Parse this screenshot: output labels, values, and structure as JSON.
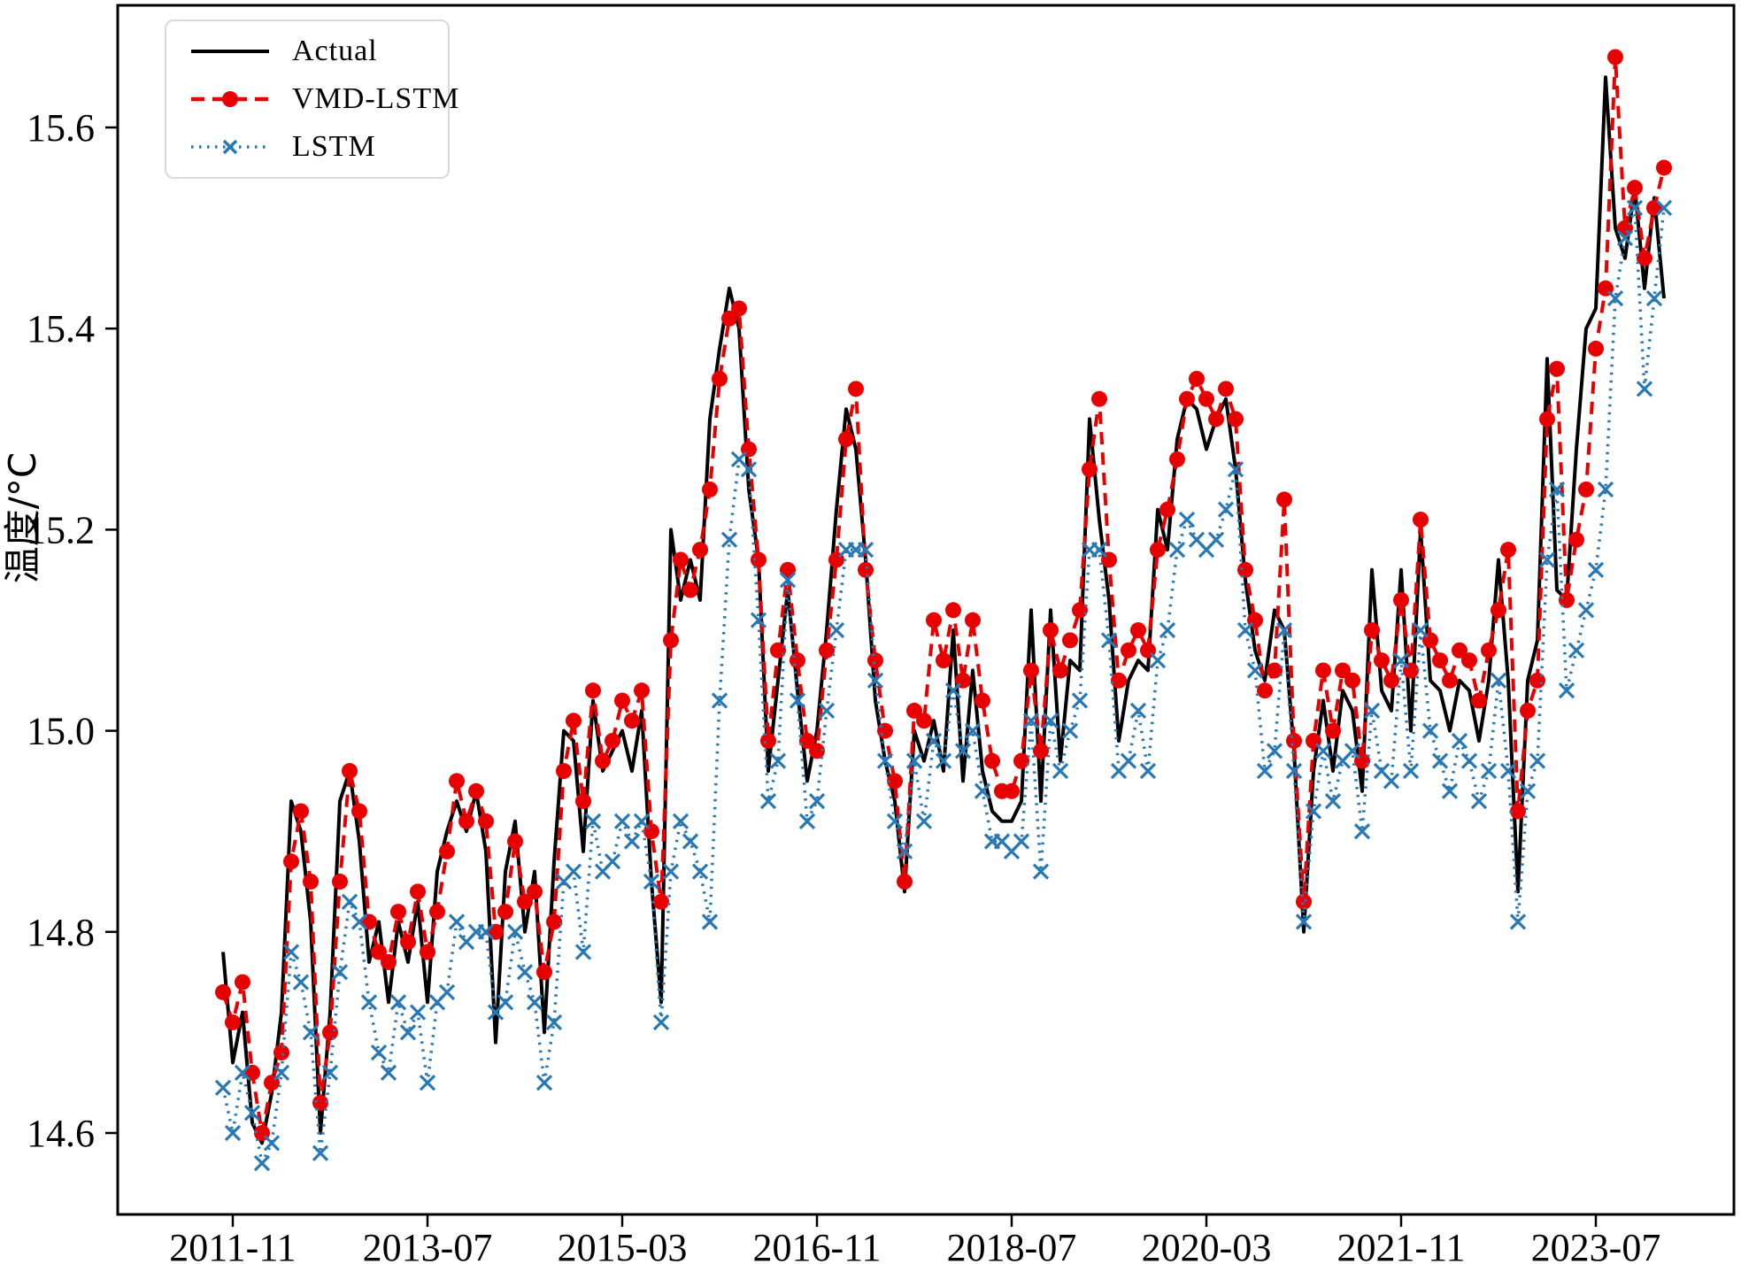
{
  "figure": {
    "background": "#ffffff",
    "frame_color": "#000000"
  },
  "legend": {
    "position": "upper-left",
    "items": [
      {
        "label": "Actual",
        "color": "#000000",
        "line_style": "solid",
        "marker": "none"
      },
      {
        "label": "VMD-LSTM",
        "color": "#e80000",
        "line_style": "dashed",
        "marker": "circle"
      },
      {
        "label": "LSTM",
        "color": "#2878b5",
        "line_style": "dotted",
        "marker": "x"
      }
    ]
  },
  "axes": {
    "y_label": "温度/°C",
    "x_label": "",
    "y_ticks": [
      14.6,
      14.8,
      15.0,
      15.2,
      15.4,
      15.6
    ],
    "x_tick_indices": [
      1,
      21,
      41,
      61,
      81,
      101,
      121,
      141
    ],
    "x_tick_labels": [
      "2011-11",
      "2013-07",
      "2015-03",
      "2016-11",
      "2018-07",
      "2020-03",
      "2021-11",
      "2023-07"
    ],
    "ylim": [
      14.5,
      15.72
    ],
    "grid": false
  },
  "chart_data": {
    "type": "line",
    "title": "",
    "xlabel": "",
    "ylabel": "温度/°C",
    "ylim": [
      14.5,
      15.72
    ],
    "grid": false,
    "legend_position": "upper-left",
    "x": [
      "2011-10",
      "2011-11",
      "2011-12",
      "2012-01",
      "2012-02",
      "2012-03",
      "2012-04",
      "2012-05",
      "2012-06",
      "2012-07",
      "2012-08",
      "2012-09",
      "2012-10",
      "2012-11",
      "2012-12",
      "2013-01",
      "2013-02",
      "2013-03",
      "2013-04",
      "2013-05",
      "2013-06",
      "2013-07",
      "2013-08",
      "2013-09",
      "2013-10",
      "2013-11",
      "2013-12",
      "2014-01",
      "2014-02",
      "2014-03",
      "2014-04",
      "2014-05",
      "2014-06",
      "2014-07",
      "2014-08",
      "2014-09",
      "2014-10",
      "2014-11",
      "2014-12",
      "2015-01",
      "2015-02",
      "2015-03",
      "2015-04",
      "2015-05",
      "2015-06",
      "2015-07",
      "2015-08",
      "2015-09",
      "2015-10",
      "2015-11",
      "2015-12",
      "2016-01",
      "2016-02",
      "2016-03",
      "2016-04",
      "2016-05",
      "2016-06",
      "2016-07",
      "2016-08",
      "2016-09",
      "2016-10",
      "2016-11",
      "2016-12",
      "2017-01",
      "2017-02",
      "2017-03",
      "2017-04",
      "2017-05",
      "2017-06",
      "2017-07",
      "2017-08",
      "2017-09",
      "2017-10",
      "2017-11",
      "2017-12",
      "2018-01",
      "2018-02",
      "2018-03",
      "2018-04",
      "2018-05",
      "2018-06",
      "2018-07",
      "2018-08",
      "2018-09",
      "2018-10",
      "2018-11",
      "2018-12",
      "2019-01",
      "2019-02",
      "2019-03",
      "2019-04",
      "2019-05",
      "2019-06",
      "2019-07",
      "2019-08",
      "2019-09",
      "2019-10",
      "2019-11",
      "2019-12",
      "2020-01",
      "2020-02",
      "2020-03",
      "2020-04",
      "2020-05",
      "2020-06",
      "2020-07",
      "2020-08",
      "2020-09",
      "2020-10",
      "2020-11",
      "2020-12",
      "2021-01",
      "2021-02",
      "2021-03",
      "2021-04",
      "2021-05",
      "2021-06",
      "2021-07",
      "2021-08",
      "2021-09",
      "2021-10",
      "2021-11",
      "2021-12",
      "2022-01",
      "2022-02",
      "2022-03",
      "2022-04",
      "2022-05",
      "2022-06",
      "2022-07",
      "2022-08",
      "2022-09",
      "2022-10",
      "2022-11",
      "2022-12",
      "2023-01",
      "2023-02",
      "2023-03",
      "2023-04",
      "2023-05",
      "2023-06",
      "2023-07",
      "2023-08",
      "2023-09",
      "2023-10",
      "2023-11",
      "2023-12",
      "2024-01",
      "2024-02"
    ],
    "series": [
      {
        "name": "Actual",
        "color": "#000000",
        "line": "solid",
        "marker": "none",
        "values": [
          14.78,
          14.67,
          14.72,
          14.61,
          14.59,
          14.64,
          14.72,
          14.93,
          14.9,
          14.81,
          14.6,
          14.72,
          14.93,
          14.96,
          14.89,
          14.77,
          14.81,
          14.73,
          14.81,
          14.77,
          14.83,
          14.73,
          14.86,
          14.9,
          14.93,
          14.9,
          14.94,
          14.88,
          14.69,
          14.86,
          14.91,
          14.8,
          14.86,
          14.7,
          14.87,
          15.0,
          14.99,
          14.88,
          15.03,
          14.96,
          14.98,
          15.0,
          14.96,
          15.02,
          14.85,
          14.73,
          15.2,
          15.13,
          15.17,
          15.13,
          15.31,
          15.38,
          15.44,
          15.4,
          15.24,
          15.17,
          14.96,
          15.05,
          15.14,
          15.04,
          14.95,
          15.0,
          15.1,
          15.22,
          15.32,
          15.28,
          15.17,
          15.03,
          14.97,
          14.93,
          14.84,
          15.0,
          14.97,
          15.01,
          14.96,
          15.1,
          14.95,
          15.06,
          14.96,
          14.92,
          14.91,
          14.91,
          14.93,
          15.12,
          14.93,
          15.12,
          14.97,
          15.07,
          15.06,
          15.31,
          15.21,
          15.13,
          14.99,
          15.05,
          15.07,
          15.06,
          15.22,
          15.18,
          15.29,
          15.33,
          15.32,
          15.28,
          15.31,
          15.33,
          15.26,
          15.15,
          15.08,
          15.05,
          15.12,
          15.1,
          14.98,
          14.8,
          14.96,
          15.03,
          14.96,
          15.04,
          15.02,
          14.94,
          15.16,
          15.04,
          15.02,
          15.16,
          15.0,
          15.2,
          15.05,
          15.04,
          15.0,
          15.05,
          15.04,
          14.99,
          15.05,
          15.17,
          15.05,
          14.84,
          15.05,
          15.09,
          15.37,
          15.14,
          15.13,
          15.28,
          15.4,
          15.42,
          15.65,
          15.5,
          15.47,
          15.54,
          15.44,
          15.53,
          15.43
        ]
      },
      {
        "name": "VMD-LSTM",
        "color": "#e80000",
        "line": "dashed",
        "marker": "circle",
        "values": [
          14.74,
          14.71,
          14.75,
          14.66,
          14.6,
          14.65,
          14.68,
          14.87,
          14.92,
          14.85,
          14.63,
          14.7,
          14.85,
          14.96,
          14.92,
          14.81,
          14.78,
          14.77,
          14.82,
          14.79,
          14.84,
          14.78,
          14.82,
          14.88,
          14.95,
          14.91,
          14.94,
          14.91,
          14.8,
          14.82,
          14.89,
          14.83,
          14.84,
          14.76,
          14.81,
          14.96,
          15.01,
          14.93,
          15.04,
          14.97,
          14.99,
          15.03,
          15.01,
          15.04,
          14.9,
          14.83,
          15.09,
          15.17,
          15.14,
          15.18,
          15.24,
          15.35,
          15.41,
          15.42,
          15.28,
          15.17,
          14.99,
          15.08,
          15.16,
          15.07,
          14.99,
          14.98,
          15.08,
          15.17,
          15.29,
          15.34,
          15.16,
          15.07,
          15.0,
          14.95,
          14.85,
          15.02,
          15.01,
          15.11,
          15.07,
          15.12,
          15.05,
          15.11,
          15.03,
          14.97,
          14.94,
          14.94,
          14.97,
          15.06,
          14.98,
          15.1,
          15.06,
          15.09,
          15.12,
          15.26,
          15.33,
          15.17,
          15.05,
          15.08,
          15.1,
          15.08,
          15.18,
          15.22,
          15.27,
          15.33,
          15.35,
          15.33,
          15.31,
          15.34,
          15.31,
          15.16,
          15.11,
          15.04,
          15.06,
          15.23,
          14.99,
          14.83,
          14.99,
          15.06,
          15.0,
          15.06,
          15.05,
          14.97,
          15.1,
          15.07,
          15.05,
          15.13,
          15.06,
          15.21,
          15.09,
          15.07,
          15.05,
          15.08,
          15.07,
          15.03,
          15.08,
          15.12,
          15.18,
          14.92,
          15.02,
          15.05,
          15.31,
          15.36,
          15.13,
          15.19,
          15.24,
          15.38,
          15.44,
          15.67,
          15.5,
          15.54,
          15.47,
          15.52,
          15.56
        ]
      },
      {
        "name": "LSTM",
        "color": "#2878b5",
        "line": "dotted",
        "marker": "x",
        "values": [
          14.645,
          14.6,
          14.66,
          14.62,
          14.57,
          14.59,
          14.66,
          14.78,
          14.75,
          14.7,
          14.58,
          14.66,
          14.76,
          14.83,
          14.81,
          14.73,
          14.68,
          14.66,
          14.73,
          14.7,
          14.72,
          14.65,
          14.73,
          14.74,
          14.81,
          14.79,
          14.8,
          14.8,
          14.72,
          14.73,
          14.8,
          14.76,
          14.73,
          14.65,
          14.71,
          14.85,
          14.86,
          14.78,
          14.91,
          14.86,
          14.87,
          14.91,
          14.89,
          14.91,
          14.85,
          14.71,
          14.86,
          14.91,
          14.89,
          14.86,
          14.81,
          15.03,
          15.19,
          15.27,
          15.26,
          15.11,
          14.93,
          14.97,
          15.15,
          15.03,
          14.91,
          14.93,
          15.02,
          15.1,
          15.18,
          15.18,
          15.18,
          15.05,
          14.97,
          14.91,
          14.88,
          14.97,
          14.91,
          14.99,
          14.97,
          15.04,
          14.98,
          15.0,
          14.94,
          14.89,
          14.89,
          14.88,
          14.89,
          15.01,
          14.86,
          15.01,
          14.96,
          15.0,
          15.03,
          15.18,
          15.18,
          15.09,
          14.96,
          14.97,
          15.02,
          14.96,
          15.07,
          15.1,
          15.18,
          15.21,
          15.19,
          15.18,
          15.19,
          15.22,
          15.26,
          15.1,
          15.06,
          14.96,
          14.98,
          15.1,
          14.96,
          14.81,
          14.92,
          14.98,
          14.93,
          14.97,
          14.98,
          14.9,
          15.02,
          14.96,
          14.95,
          15.07,
          14.96,
          15.1,
          15.0,
          14.97,
          14.94,
          14.99,
          14.97,
          14.93,
          14.96,
          15.05,
          14.96,
          14.81,
          14.94,
          14.97,
          15.17,
          15.24,
          15.04,
          15.08,
          15.12,
          15.16,
          15.24,
          15.43,
          15.49,
          15.52,
          15.34,
          15.43,
          15.52
        ]
      }
    ]
  }
}
